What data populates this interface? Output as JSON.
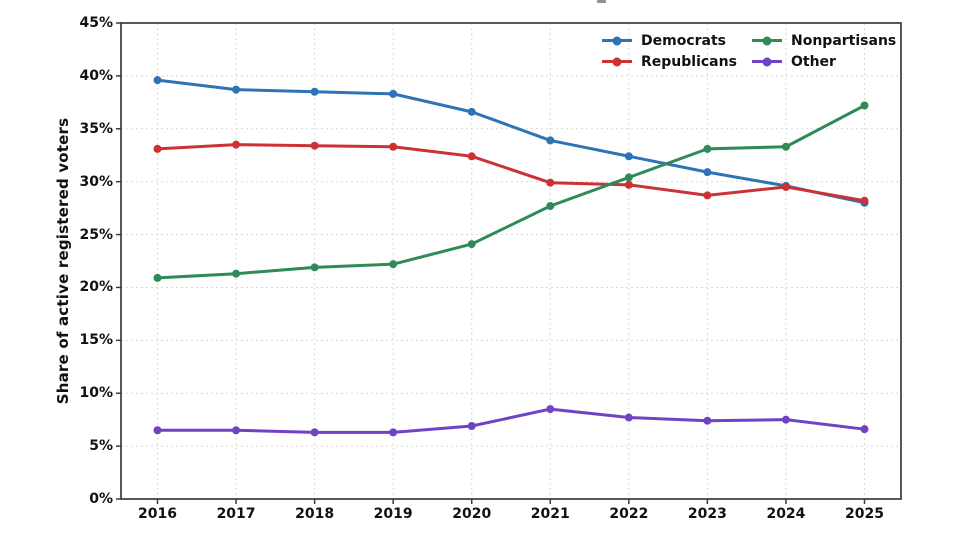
{
  "figure": {
    "background": "#ffffff",
    "spine_color": "#3b3b3b",
    "grid_color": "#d9d9d9",
    "text_color": "#111111"
  },
  "chart_data": {
    "type": "line",
    "title": "",
    "xlabel": "",
    "ylabel": "Share of active registered voters",
    "x": [
      2016,
      2017,
      2018,
      2019,
      2020,
      2021,
      2022,
      2023,
      2024,
      2025
    ],
    "xtick_labels": [
      "2016",
      "2017",
      "2018",
      "2019",
      "2020",
      "2021",
      "2022",
      "2023",
      "2024",
      "2025"
    ],
    "ylim": [
      0,
      45
    ],
    "yticks": [
      0,
      5,
      10,
      15,
      20,
      25,
      30,
      35,
      40,
      45
    ],
    "ytick_labels": [
      "0%",
      "5%",
      "10%",
      "15%",
      "20%",
      "25%",
      "30%",
      "35%",
      "40%",
      "45%"
    ],
    "grid": true,
    "legend": {
      "position": "upper-right",
      "columns": 2,
      "order": "column-major"
    },
    "series": [
      {
        "name": "Democrats",
        "color": "#2e74b5",
        "values": [
          39.6,
          38.7,
          38.5,
          38.3,
          36.6,
          33.9,
          32.4,
          30.9,
          29.6,
          28.0
        ]
      },
      {
        "name": "Republicans",
        "color": "#cc3133",
        "values": [
          33.1,
          33.5,
          33.4,
          33.3,
          32.4,
          29.9,
          29.7,
          28.7,
          29.5,
          28.2
        ]
      },
      {
        "name": "Nonpartisans",
        "color": "#2e8b57",
        "values": [
          20.9,
          21.3,
          21.9,
          22.2,
          24.1,
          27.7,
          30.4,
          33.1,
          33.3,
          37.2
        ]
      },
      {
        "name": "Other",
        "color": "#7042c4",
        "values": [
          6.5,
          6.5,
          6.3,
          6.3,
          6.9,
          8.5,
          7.7,
          7.4,
          7.5,
          6.6
        ]
      }
    ]
  }
}
